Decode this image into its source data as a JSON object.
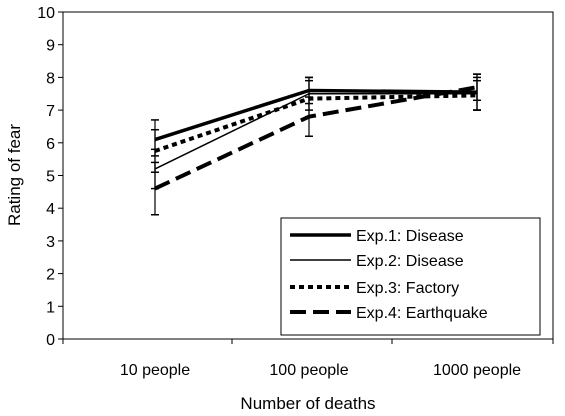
{
  "chart_data": {
    "type": "line",
    "title": "",
    "xlabel": "Number of deaths",
    "ylabel": "Rating of fear",
    "categories": [
      "10 people",
      "100 people",
      "1000 people"
    ],
    "ylim": [
      0,
      10
    ],
    "yticks": [
      0,
      1,
      2,
      3,
      4,
      5,
      6,
      7,
      8,
      9,
      10
    ],
    "grid": false,
    "legend_position": "bottom-right",
    "series": [
      {
        "name": "Exp.1: Disease",
        "style": "thick-solid",
        "values": [
          6.1,
          7.6,
          7.55
        ],
        "error_low": [
          5.6,
          7.2,
          7.0
        ],
        "error_high": [
          6.7,
          8.0,
          8.1
        ]
      },
      {
        "name": "Exp.2: Disease",
        "style": "thin-solid",
        "values": [
          5.2,
          7.5,
          7.5
        ],
        "error_low": [
          4.6,
          7.0,
          7.0
        ],
        "error_high": [
          5.8,
          8.0,
          8.0
        ]
      },
      {
        "name": "Exp.3: Factory",
        "style": "dotted",
        "values": [
          5.75,
          7.35,
          7.45
        ],
        "error_low": [
          5.1,
          6.8,
          7.0
        ],
        "error_high": [
          6.4,
          7.9,
          7.9
        ]
      },
      {
        "name": "Exp.4: Earthquake",
        "style": "dashed",
        "values": [
          4.6,
          6.8,
          7.7
        ],
        "error_low": [
          3.8,
          6.2,
          7.3
        ],
        "error_high": [
          5.4,
          7.4,
          8.1
        ]
      }
    ]
  }
}
